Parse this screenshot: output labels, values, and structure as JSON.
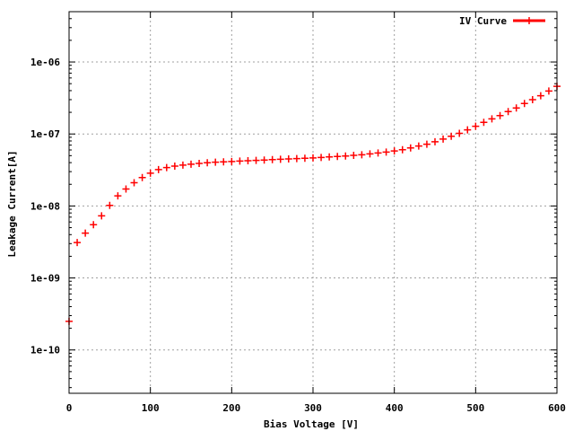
{
  "chart_data": {
    "type": "scatter",
    "title": "",
    "xlabel": "Bias Voltage [V]",
    "ylabel": "Leakage Current[A]",
    "xlim": [
      0,
      600
    ],
    "ylim": [
      2.5e-11,
      5e-06
    ],
    "y_scale": "log",
    "grid": true,
    "legend_position": "top-right",
    "x_ticks": [
      0,
      100,
      200,
      300,
      400,
      500,
      600
    ],
    "x_tick_labels": [
      "0",
      "100",
      "200",
      "300",
      "400",
      "500",
      "600"
    ],
    "y_ticks": [
      1e-10,
      1e-09,
      1e-08,
      1e-07,
      1e-06
    ],
    "y_tick_labels": [
      "1e-10",
      "1e-09",
      "1e-08",
      "1e-07",
      "1e-06"
    ],
    "series": [
      {
        "name": "IV Curve",
        "color": "#ff0000",
        "marker": "plus",
        "x": [
          0,
          10,
          20,
          30,
          40,
          50,
          60,
          70,
          80,
          90,
          100,
          110,
          120,
          130,
          140,
          150,
          160,
          170,
          180,
          190,
          200,
          210,
          220,
          230,
          240,
          250,
          260,
          270,
          280,
          290,
          300,
          310,
          320,
          330,
          340,
          350,
          360,
          370,
          380,
          390,
          400,
          410,
          420,
          430,
          440,
          450,
          460,
          470,
          480,
          490,
          500,
          510,
          520,
          530,
          540,
          550,
          560,
          570,
          580,
          590,
          600
        ],
        "y": [
          2.5e-10,
          3.1e-09,
          4.2e-09,
          5.5e-09,
          7.3e-09,
          1.02e-08,
          1.38e-08,
          1.72e-08,
          2.1e-08,
          2.48e-08,
          2.85e-08,
          3.2e-08,
          3.42e-08,
          3.58e-08,
          3.7e-08,
          3.8e-08,
          3.9e-08,
          3.98e-08,
          4.05e-08,
          4.1e-08,
          4.15e-08,
          4.2e-08,
          4.25e-08,
          4.3e-08,
          4.35e-08,
          4.4e-08,
          4.45e-08,
          4.5e-08,
          4.55e-08,
          4.6e-08,
          4.65e-08,
          4.72e-08,
          4.8e-08,
          4.88e-08,
          4.95e-08,
          5.05e-08,
          5.15e-08,
          5.3e-08,
          5.45e-08,
          5.6e-08,
          5.8e-08,
          6.05e-08,
          6.4e-08,
          6.8e-08,
          7.2e-08,
          7.8e-08,
          8.5e-08,
          9.3e-08,
          1.02e-07,
          1.14e-07,
          1.28e-07,
          1.45e-07,
          1.62e-07,
          1.8e-07,
          2.05e-07,
          2.3e-07,
          2.65e-07,
          3e-07,
          3.4e-07,
          3.95e-07,
          4.6e-07
        ]
      }
    ]
  }
}
